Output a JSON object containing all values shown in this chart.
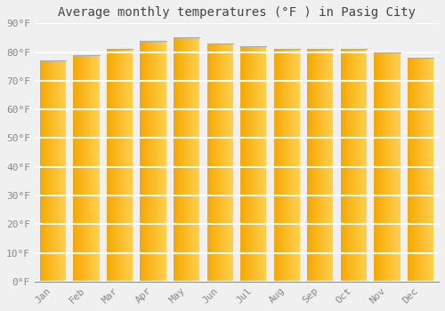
{
  "months": [
    "Jan",
    "Feb",
    "Mar",
    "Apr",
    "May",
    "Jun",
    "Jul",
    "Aug",
    "Sep",
    "Oct",
    "Nov",
    "Dec"
  ],
  "values": [
    77,
    79,
    81,
    84,
    85,
    83,
    82,
    81,
    81,
    81,
    80,
    78
  ],
  "bar_color_left": "#F5A800",
  "bar_color_right": "#FFD050",
  "bar_color_top": "#CCCCCC",
  "title": "Average monthly temperatures (°F ) in Pasig City",
  "ylim": [
    0,
    90
  ],
  "ytick_step": 10,
  "background_color": "#f0f0f0",
  "plot_background": "#f0f0f0",
  "grid_color": "#ffffff",
  "title_fontsize": 10,
  "tick_fontsize": 8,
  "font_family": "monospace"
}
